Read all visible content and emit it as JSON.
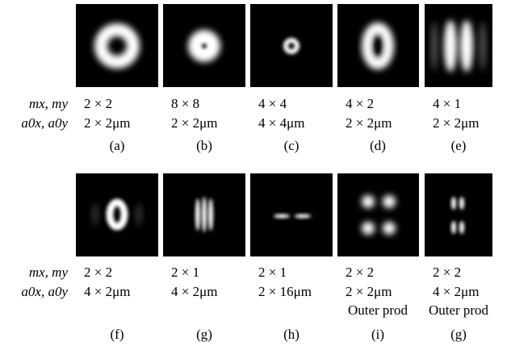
{
  "row_labels": [
    "mx, my",
    "a0x, a0y"
  ],
  "panels": [
    {
      "m": "2 × 2",
      "a": "2 × 2μm",
      "caption": "(a)"
    },
    {
      "m": "8 × 8",
      "a": "2 × 2μm",
      "caption": "(b)"
    },
    {
      "m": "4 × 4",
      "a": "4 × 4μm",
      "caption": "(c)"
    },
    {
      "m": "4 × 2",
      "a": "2 × 2μm",
      "caption": "(d)"
    },
    {
      "m": "4 × 1",
      "a": "2 × 2μm",
      "caption": "(e)"
    },
    {
      "m": "2 × 2",
      "a": "4 × 2μm",
      "caption": "(f)"
    },
    {
      "m": "2 × 1",
      "a": "4 × 2μm",
      "caption": "(g)"
    },
    {
      "m": "2 × 1",
      "a": "2 × 16μm",
      "caption": "(h)"
    },
    {
      "m": "2 × 2",
      "a": "2 × 2μm",
      "note": "Outer prod",
      "caption": "(i)"
    },
    {
      "m": "2 × 2",
      "a": "4 × 2μm",
      "note": "Outer prod",
      "caption": "(g)"
    }
  ]
}
